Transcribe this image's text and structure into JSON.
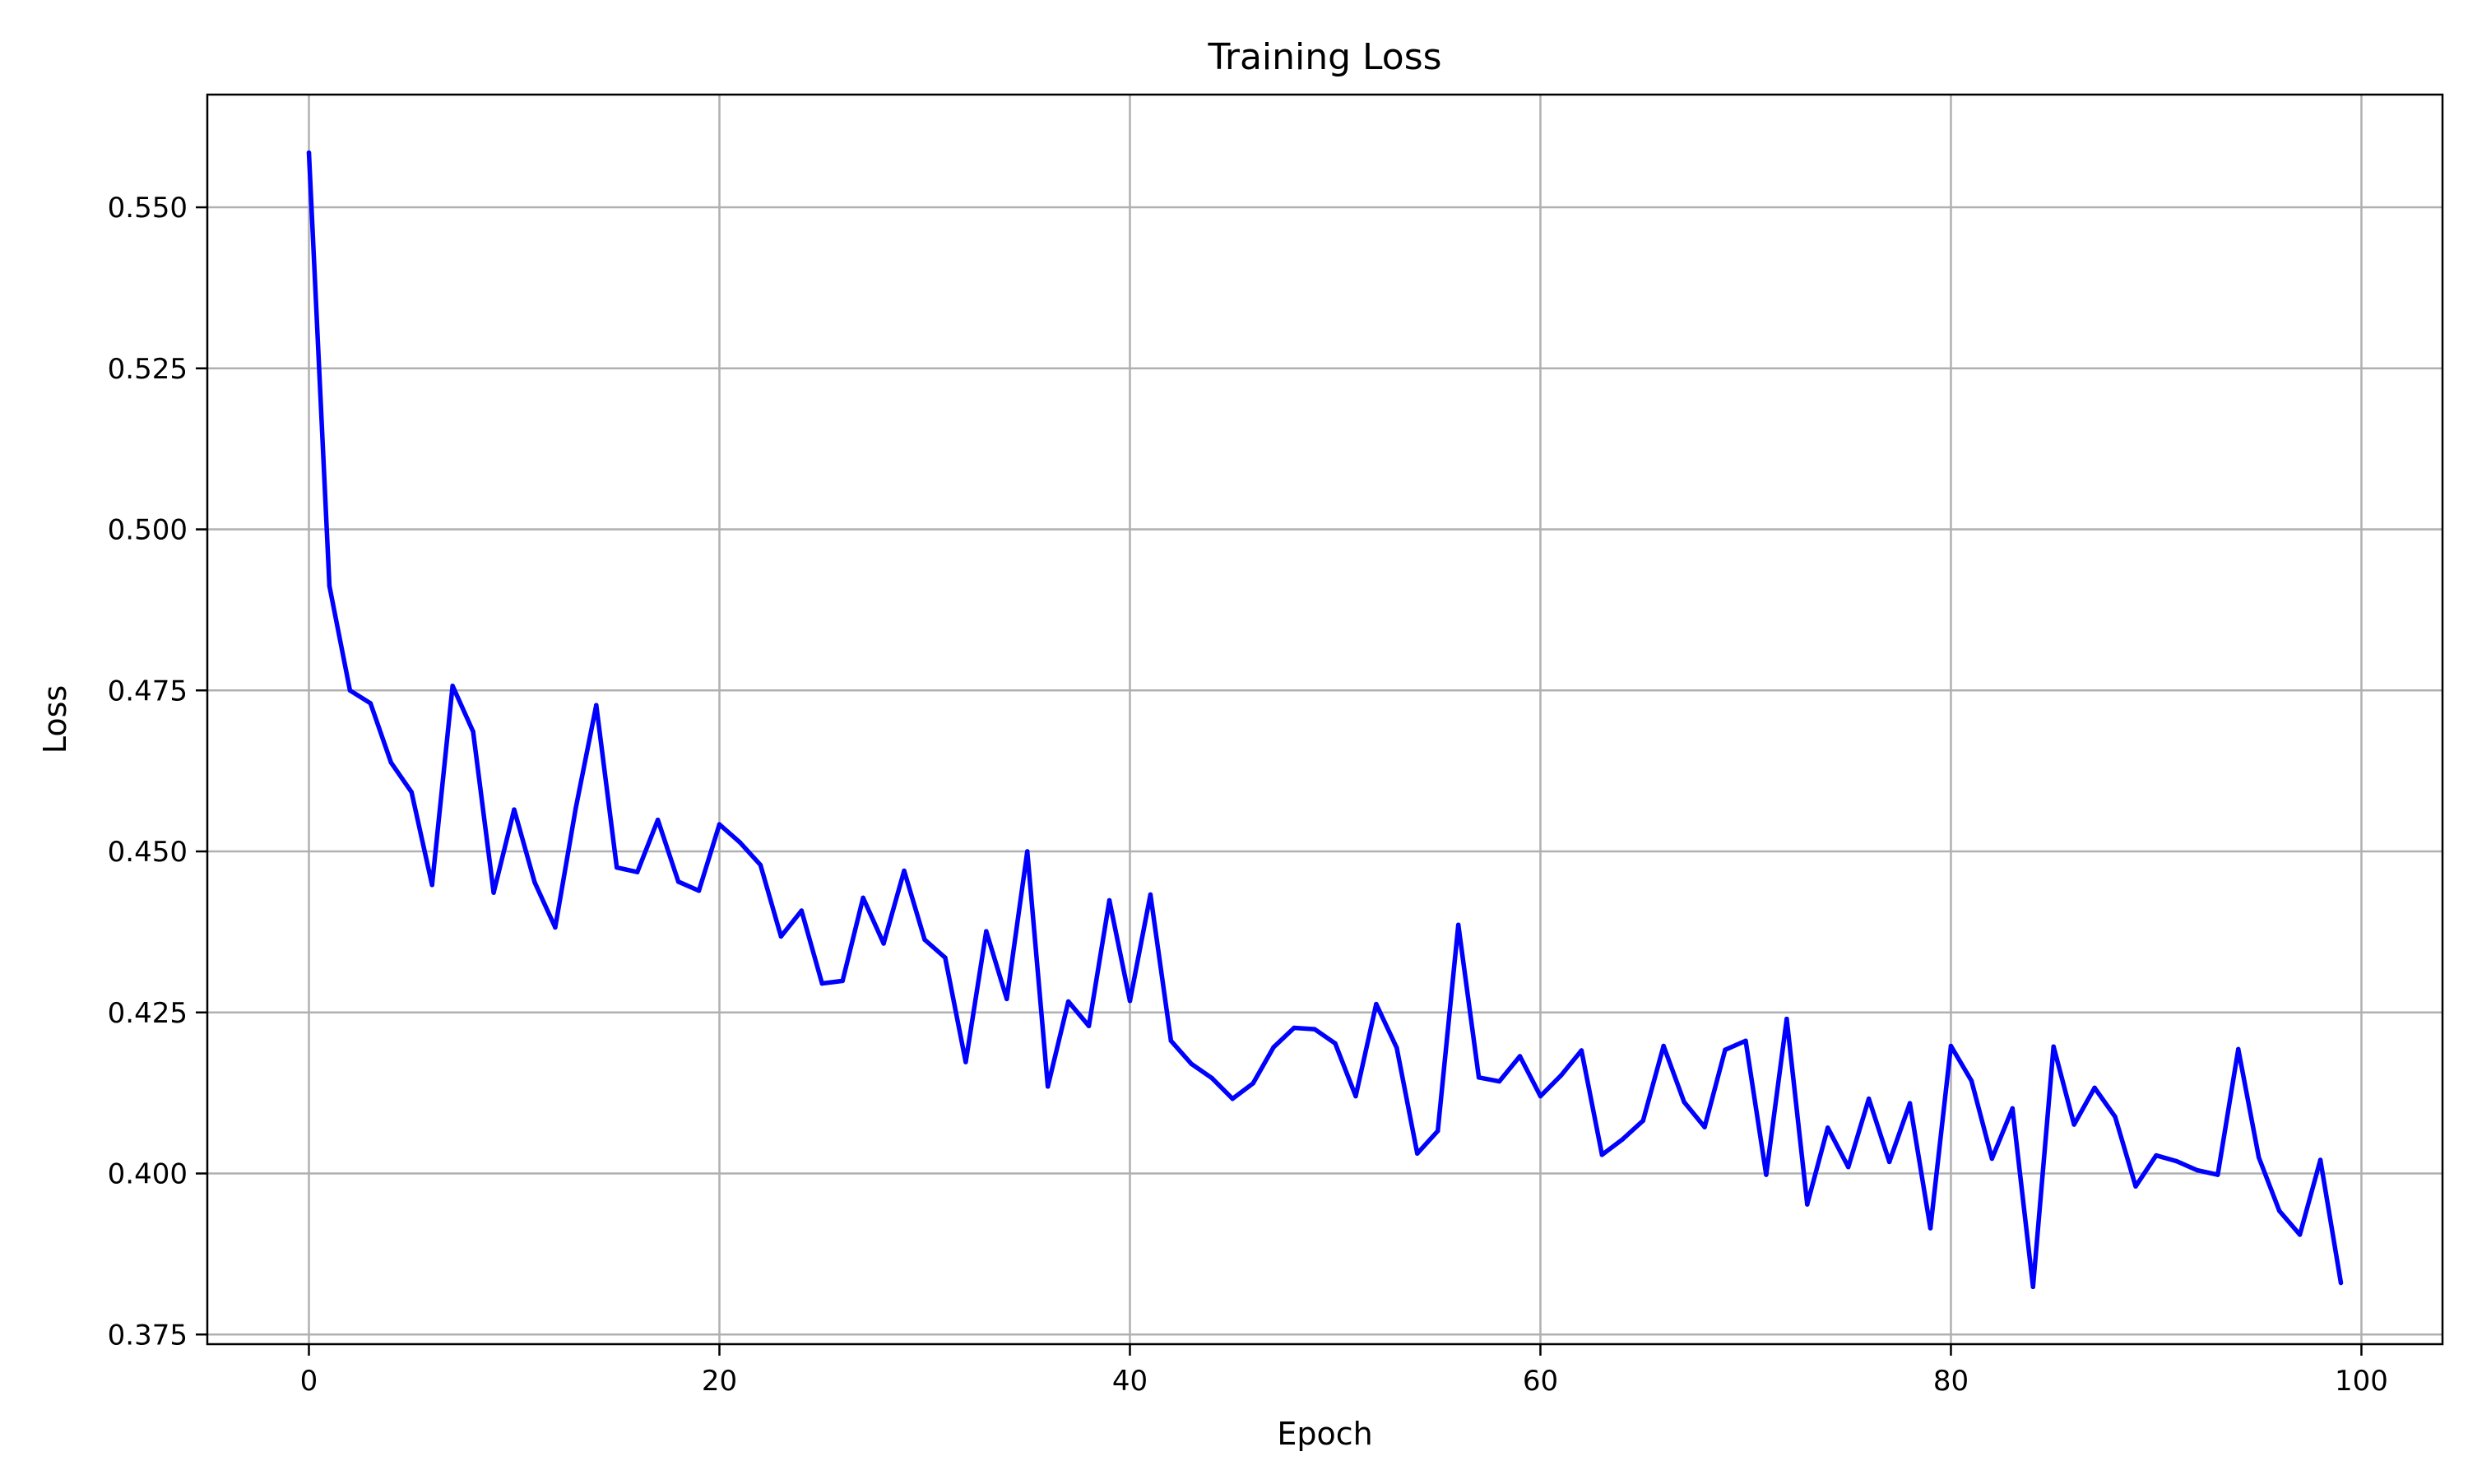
{
  "chart_data": {
    "type": "line",
    "title": "Training Loss",
    "xlabel": "Epoch",
    "ylabel": "Loss",
    "xlim": [
      -4.95,
      103.95
    ],
    "ylim": [
      0.3735,
      0.5675
    ],
    "grid": true,
    "x_ticks": [
      0,
      20,
      40,
      60,
      80,
      100
    ],
    "x_tick_labels": [
      "0",
      "20",
      "40",
      "60",
      "80",
      "100"
    ],
    "y_ticks": [
      0.375,
      0.4,
      0.425,
      0.45,
      0.475,
      0.5,
      0.525,
      0.55
    ],
    "y_tick_labels": [
      "0.375",
      "0.400",
      "0.425",
      "0.450",
      "0.475",
      "0.500",
      "0.525",
      "0.550"
    ],
    "series": [
      {
        "color": "#0000ff",
        "x": [
          0,
          1,
          2,
          3,
          4,
          5,
          6,
          7,
          8,
          9,
          10,
          11,
          12,
          13,
          14,
          15,
          16,
          17,
          18,
          19,
          20,
          21,
          22,
          23,
          24,
          25,
          26,
          27,
          28,
          29,
          30,
          31,
          32,
          33,
          34,
          35,
          36,
          37,
          38,
          39,
          40,
          41,
          42,
          43,
          44,
          45,
          46,
          47,
          48,
          49,
          50,
          51,
          52,
          53,
          54,
          55,
          56,
          57,
          58,
          59,
          60,
          61,
          62,
          63,
          64,
          65,
          66,
          67,
          68,
          69,
          70,
          71,
          72,
          73,
          74,
          75,
          76,
          77,
          78,
          79,
          80,
          81,
          82,
          83,
          84,
          85,
          86,
          87,
          88,
          89,
          90,
          91,
          92,
          93,
          94,
          95,
          96,
          97,
          98,
          99
        ],
        "values": [
          0.5585,
          0.4912,
          0.475,
          0.473,
          0.4638,
          0.4592,
          0.4448,
          0.4757,
          0.4686,
          0.4436,
          0.4565,
          0.4452,
          0.4382,
          0.4567,
          0.4727,
          0.4475,
          0.4468,
          0.4549,
          0.4453,
          0.4439,
          0.4542,
          0.4514,
          0.4479,
          0.4368,
          0.4408,
          0.4295,
          0.4299,
          0.4428,
          0.4357,
          0.447,
          0.4363,
          0.4335,
          0.4173,
          0.4376,
          0.4271,
          0.45,
          0.4135,
          0.4267,
          0.4229,
          0.4424,
          0.4268,
          0.4433,
          0.4206,
          0.417,
          0.4148,
          0.4116,
          0.414,
          0.4196,
          0.4226,
          0.4224,
          0.4202,
          0.412,
          0.4263,
          0.4195,
          0.4031,
          0.4066,
          0.4386,
          0.4149,
          0.4143,
          0.4182,
          0.412,
          0.4152,
          0.4191,
          0.4029,
          0.4053,
          0.4082,
          0.4198,
          0.4111,
          0.4072,
          0.4192,
          0.4206,
          0.3998,
          0.424,
          0.3952,
          0.4071,
          0.401,
          0.4116,
          0.4018,
          0.4109,
          0.3915,
          0.4198,
          0.4144,
          0.4023,
          0.4101,
          0.3824,
          0.4197,
          0.4076,
          0.4133,
          0.4088,
          0.398,
          0.4028,
          0.4019,
          0.4005,
          0.3998,
          0.4193,
          0.4025,
          0.3942,
          0.3905,
          0.4021,
          0.383
        ]
      }
    ]
  }
}
